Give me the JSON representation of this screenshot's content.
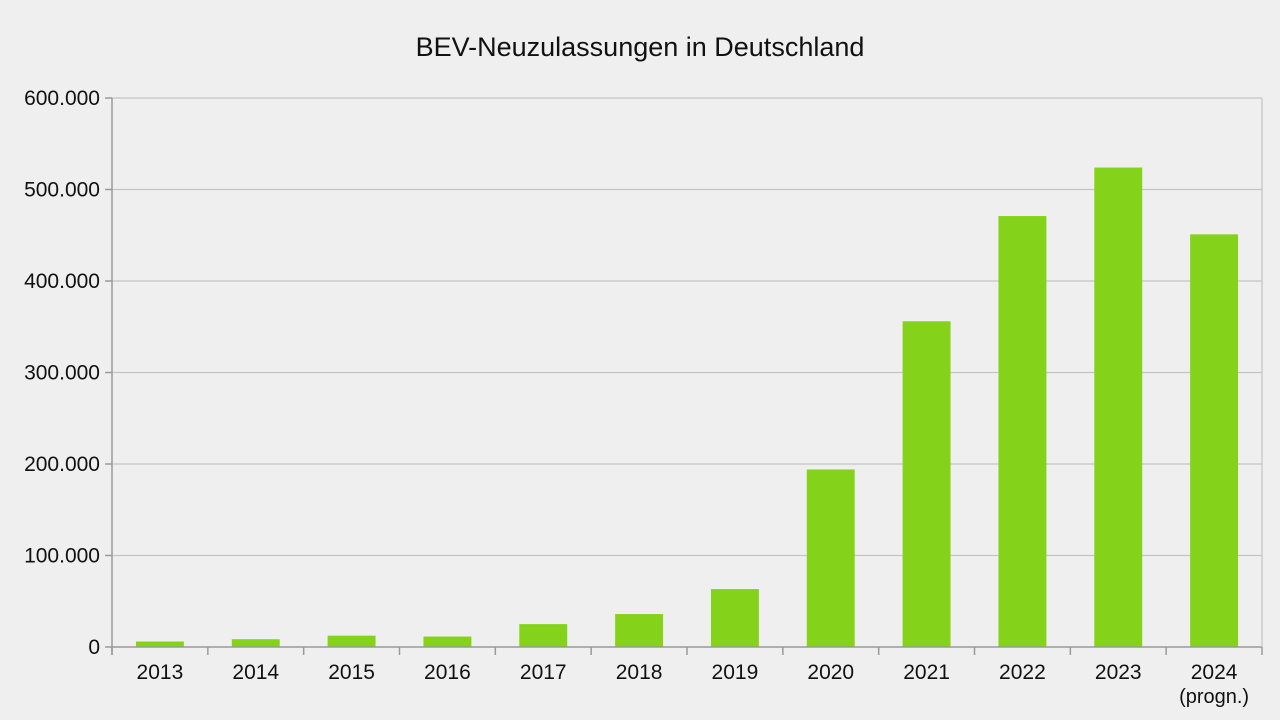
{
  "chart_data": {
    "type": "bar",
    "title": "BEV-Neuzulassungen in Deutschland",
    "xlabel": "",
    "ylabel": "",
    "categories": [
      "2013",
      "2014",
      "2015",
      "2016",
      "2017",
      "2018",
      "2019",
      "2020",
      "2021",
      "2022",
      "2023",
      "2024"
    ],
    "category_sublabels": [
      "",
      "",
      "",
      "",
      "",
      "",
      "",
      "",
      "",
      "",
      "",
      "(progn.)"
    ],
    "values": [
      6000,
      8500,
      12400,
      11400,
      25000,
      36000,
      63300,
      194000,
      356000,
      471000,
      524000,
      451000
    ],
    "ylim": [
      0,
      600000
    ],
    "yticks": [
      0,
      100000,
      200000,
      300000,
      400000,
      500000,
      600000
    ],
    "ytick_labels": [
      "0",
      "100.000",
      "200.000",
      "300.000",
      "400.000",
      "500.000",
      "600.000"
    ],
    "bar_color": "#84d31a",
    "grid": true,
    "legend": "none"
  }
}
